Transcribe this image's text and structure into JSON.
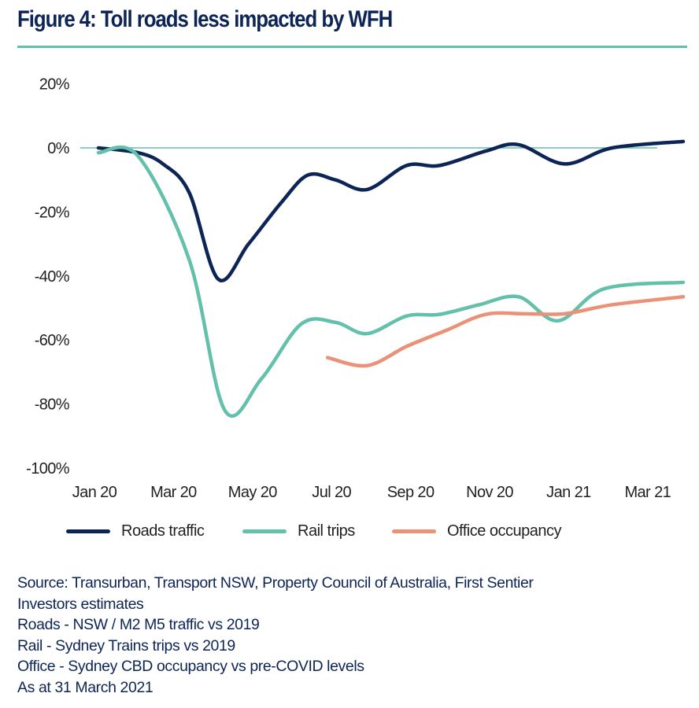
{
  "title": "Figure 4: Toll roads less impacted by WFH",
  "chart_data": {
    "type": "line",
    "title": "Figure 4: Toll roads less impacted by WFH",
    "xlabel": "",
    "ylabel": "",
    "ylim": [
      -100,
      20
    ],
    "y_ticks": [
      "20%",
      "0%",
      "-20%",
      "-40%",
      "-60%",
      "-80%",
      "-100%"
    ],
    "y_tick_values": [
      20,
      0,
      -20,
      -40,
      -60,
      -80,
      -100
    ],
    "x_ticks": [
      "Jan 20",
      "Mar 20",
      "May 20",
      "Jul 20",
      "Sep 20",
      "Nov 20",
      "Jan 21",
      "Mar 21"
    ],
    "x_tick_values": [
      "2020-01-01",
      "2020-03-01",
      "2020-05-01",
      "2020-07-01",
      "2020-09-01",
      "2020-11-01",
      "2021-01-01",
      "2021-03-01"
    ],
    "reference_line": 0,
    "grid": false,
    "legend_position": "bottom",
    "series": [
      {
        "name": "Roads traffic",
        "color": "#0d2556",
        "points": [
          [
            "2020-01-01",
            0
          ],
          [
            "2020-02-01",
            -1.5
          ],
          [
            "2020-02-20",
            -5
          ],
          [
            "2020-03-10",
            -14
          ],
          [
            "2020-04-02",
            -41
          ],
          [
            "2020-04-25",
            -30
          ],
          [
            "2020-05-20",
            -17
          ],
          [
            "2020-06-10",
            -8.5
          ],
          [
            "2020-07-01",
            -10
          ],
          [
            "2020-07-25",
            -13
          ],
          [
            "2020-08-25",
            -5.5
          ],
          [
            "2020-09-20",
            -5.5
          ],
          [
            "2020-10-25",
            -1
          ],
          [
            "2020-11-20",
            1
          ],
          [
            "2020-12-25",
            -5
          ],
          [
            "2021-02-01",
            0
          ],
          [
            "2021-03-25",
            2
          ]
        ]
      },
      {
        "name": "Rail trips",
        "color": "#62c0ab",
        "points": [
          [
            "2020-01-01",
            -1.5
          ],
          [
            "2020-02-01",
            -2.5
          ],
          [
            "2020-03-10",
            -35
          ],
          [
            "2020-04-07",
            -82
          ],
          [
            "2020-05-05",
            -72
          ],
          [
            "2020-06-05",
            -55
          ],
          [
            "2020-07-01",
            -54.5
          ],
          [
            "2020-07-25",
            -58
          ],
          [
            "2020-08-25",
            -52.5
          ],
          [
            "2020-09-20",
            -52
          ],
          [
            "2020-10-20",
            -49
          ],
          [
            "2020-11-20",
            -46.5
          ],
          [
            "2020-12-20",
            -54
          ],
          [
            "2021-01-25",
            -44
          ],
          [
            "2021-03-25",
            -42
          ]
        ]
      },
      {
        "name": "Office occupancy",
        "color": "#ea9277",
        "points": [
          [
            "2020-06-25",
            -65.5
          ],
          [
            "2020-07-25",
            -68
          ],
          [
            "2020-08-25",
            -62
          ],
          [
            "2020-09-25",
            -57
          ],
          [
            "2020-10-25",
            -52
          ],
          [
            "2020-11-25",
            -51.8
          ],
          [
            "2020-12-25",
            -51.8
          ],
          [
            "2021-02-01",
            -49
          ],
          [
            "2021-03-25",
            -46.5
          ]
        ]
      }
    ]
  },
  "notes": [
    "Source: Transurban, Transport NSW, Property Council of Australia, First Sentier",
    "Investors estimates",
    "Roads - NSW / M2 M5 traffic vs 2019",
    "Rail - Sydney Trains trips vs 2019",
    "Office - Sydney CBD occupancy vs pre-COVID levels",
    "As at 31 March 2021"
  ]
}
